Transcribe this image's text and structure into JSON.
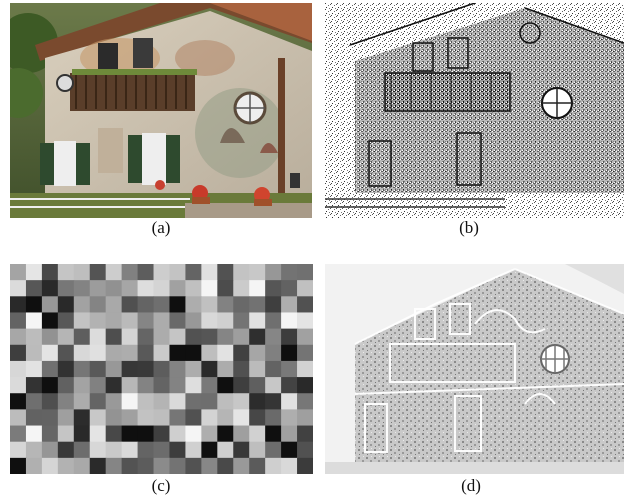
{
  "figure": {
    "panels": [
      {
        "id": "a",
        "caption": "(a)",
        "kind": "photo"
      },
      {
        "id": "b",
        "caption": "(b)",
        "kind": "edge-map-sharp"
      },
      {
        "id": "c",
        "caption": "(c)",
        "kind": "block-grid"
      },
      {
        "id": "d",
        "caption": "(d)",
        "kind": "edge-map-smooth"
      }
    ]
  }
}
